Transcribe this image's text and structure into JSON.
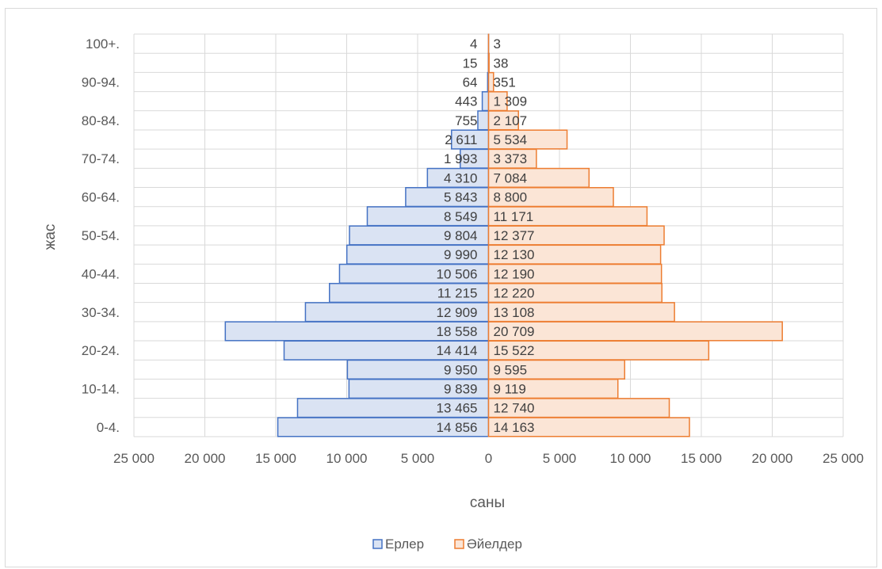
{
  "chart_data": {
    "type": "bar",
    "orientation": "horizontal",
    "subtype": "population-pyramid",
    "title": "",
    "xlabel": "саны",
    "ylabel": "жас",
    "xlim": [
      -25000,
      25000
    ],
    "x_ticks": [
      -25000,
      -20000,
      -15000,
      -10000,
      -5000,
      0,
      5000,
      10000,
      15000,
      20000,
      25000
    ],
    "x_tick_labels": [
      "25 000",
      "20 000",
      "15 000",
      "10 000",
      "5 000",
      "0",
      "5 000",
      "10 000",
      "15 000",
      "20 000",
      "25 000"
    ],
    "grid": true,
    "legend_position": "bottom",
    "categories": [
      "0-4.",
      "",
      "10-14.",
      "",
      "20-24.",
      "",
      "30-34.",
      "",
      "40-44.",
      "",
      "50-54.",
      "",
      "60-64.",
      "",
      "70-74.",
      "",
      "80-84.",
      "",
      "90-94.",
      "",
      "100+."
    ],
    "series": [
      {
        "name": "Ерлер",
        "color": "#dae3f3",
        "edge_color": "#4472c4",
        "values": [
          14856,
          13465,
          9839,
          9950,
          14414,
          18558,
          12909,
          11215,
          10506,
          9990,
          9804,
          8549,
          5843,
          4310,
          1993,
          2611,
          755,
          443,
          64,
          15,
          4
        ],
        "labels": [
          "14 856",
          "13 465",
          "9 839",
          "9 950",
          "14 414",
          "18 558",
          "12 909",
          "11 215",
          "10 506",
          "9 990",
          "9 804",
          "8 549",
          "5 843",
          "4 310",
          "1 993",
          "2 611",
          "755",
          "443",
          "64",
          "15",
          "4"
        ]
      },
      {
        "name": "Әйелдер",
        "color": "#fbe5d6",
        "edge_color": "#ed7d31",
        "values": [
          14163,
          12740,
          9119,
          9595,
          15522,
          20709,
          13108,
          12220,
          12190,
          12130,
          12377,
          11171,
          8800,
          7084,
          3373,
          5534,
          2107,
          1309,
          351,
          38,
          3
        ],
        "labels": [
          "14 163",
          "12 740",
          "9 119",
          "9 595",
          "15 522",
          "20 709",
          "13 108",
          "12 220",
          "12 190",
          "12 130",
          "12 377",
          "11 171",
          "8 800",
          "7 084",
          "3 373",
          "5 534",
          "2 107",
          "1 309",
          "351",
          "38",
          "3"
        ]
      }
    ]
  }
}
